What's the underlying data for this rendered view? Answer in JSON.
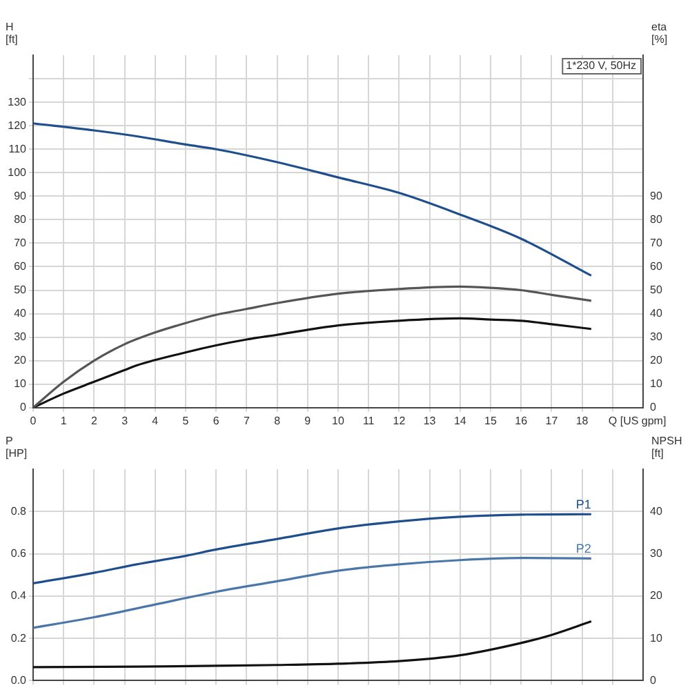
{
  "chart_data": [
    {
      "type": "line",
      "xlabel": "Q [US gpm]",
      "ylabel": "H\n[ft]",
      "y2label": "eta\n[%]",
      "annotations": [
        "1*230 V, 50Hz"
      ],
      "xlim": [
        0,
        20
      ],
      "xticks": [
        0,
        1,
        2,
        3,
        4,
        5,
        6,
        7,
        8,
        9,
        10,
        11,
        12,
        13,
        14,
        15,
        16,
        17,
        18,
        {
          "value": 19,
          "label": null
        }
      ],
      "ylim": [
        0,
        150
      ],
      "yticks": [
        0,
        10,
        20,
        30,
        40,
        50,
        60,
        70,
        80,
        90,
        100,
        110,
        120,
        130,
        {
          "value": 140,
          "label": null
        }
      ],
      "y2lim": [
        0,
        150
      ],
      "y2ticks": [
        0,
        10,
        20,
        30,
        40,
        50,
        60,
        70,
        80,
        90
      ],
      "grid": true,
      "legend": false,
      "marker": "none",
      "line_style": "solid",
      "series": [
        {
          "color": "#1f4e8c",
          "x": [
            0,
            2,
            3.4,
            5,
            6,
            8,
            10,
            12,
            14,
            16,
            18.3
          ],
          "values": [
            121,
            118,
            115.5,
            112,
            110,
            104.5,
            98,
            91.4,
            82.2,
            71.9,
            56.2
          ]
        },
        {
          "color": "#555555",
          "axis": "y2",
          "x": [
            0,
            1,
            2,
            3,
            4,
            5,
            6,
            7,
            8,
            10,
            12,
            14,
            15,
            16,
            17,
            18.3
          ],
          "values": [
            0,
            11,
            20,
            27,
            32,
            36,
            39.5,
            42,
            44.5,
            48.5,
            50.5,
            51.5,
            51,
            50,
            48,
            45.5
          ]
        },
        {
          "color": "#111111",
          "axis": "y2",
          "x": [
            0,
            1,
            2,
            3,
            3.4,
            5,
            6,
            7,
            8,
            10,
            12,
            14,
            15,
            16,
            17,
            18.3
          ],
          "values": [
            0,
            6,
            11,
            16,
            18,
            23.5,
            26.5,
            29,
            31,
            35,
            37,
            38,
            37.5,
            37,
            35.5,
            33.5
          ]
        }
      ]
    },
    {
      "type": "line",
      "ylabel": "P\n[HP]",
      "y2label": "NPSH\n[ft]",
      "tick_labels": "y",
      "xlim": [
        0,
        20
      ],
      "xticks": [
        0,
        1,
        2,
        3,
        4,
        5,
        6,
        7,
        8,
        9,
        10,
        11,
        12,
        13,
        14,
        15,
        16,
        17,
        18,
        19
      ],
      "ylim": [
        0,
        1
      ],
      "yticks": [
        {
          "value": 0,
          "label": "0.0"
        },
        0.2,
        0.4,
        0.6,
        0.8
      ],
      "y2lim": [
        0,
        50
      ],
      "y2ticks": [
        0,
        10,
        20,
        30,
        40
      ],
      "grid": true,
      "legend": false,
      "marker": "none",
      "line_style": "solid",
      "series": [
        {
          "name": "P1",
          "color": "#1f4e8c",
          "x": [
            0,
            2,
            3.4,
            5,
            6,
            8,
            10,
            12,
            14,
            16,
            18.3
          ],
          "values": [
            0.46,
            0.51,
            0.55,
            0.59,
            0.62,
            0.67,
            0.72,
            0.753,
            0.775,
            0.785,
            0.787
          ]
        },
        {
          "name": "P2",
          "color": "#4a77a8",
          "x": [
            0,
            2,
            4,
            6,
            8,
            10,
            12,
            14,
            16,
            18.3
          ],
          "values": [
            0.25,
            0.3,
            0.36,
            0.42,
            0.47,
            0.52,
            0.55,
            0.57,
            0.58,
            0.578
          ]
        },
        {
          "color": "#111111",
          "axis": "y2",
          "x": [
            0,
            3.4,
            6,
            8,
            10,
            12,
            14,
            16,
            17,
            18.3
          ],
          "values": [
            3.2,
            3.3,
            3.5,
            3.7,
            4,
            4.6,
            6,
            8.9,
            10.8,
            14
          ]
        }
      ]
    }
  ]
}
